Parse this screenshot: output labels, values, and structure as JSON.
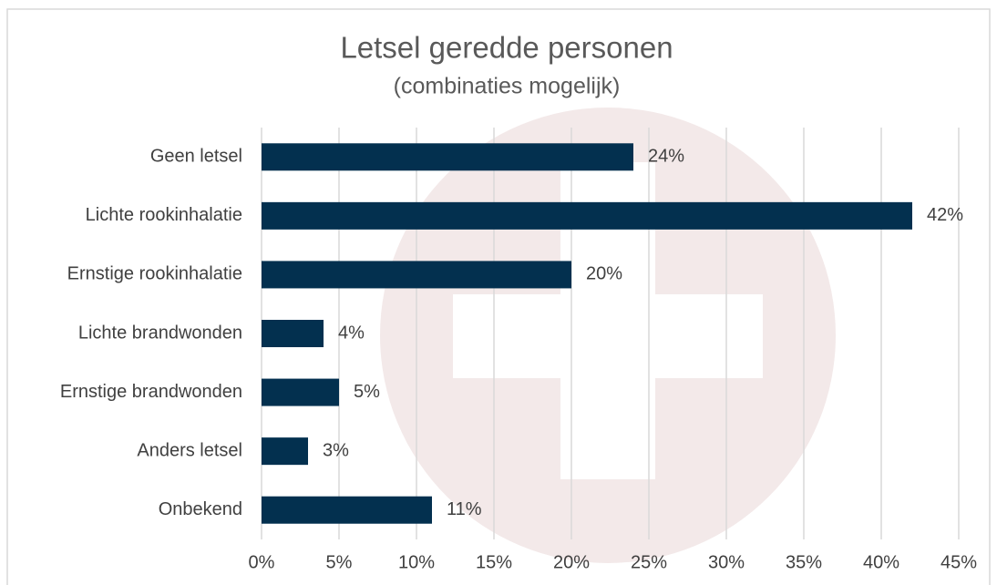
{
  "chart_data": {
    "type": "bar",
    "orientation": "horizontal",
    "title": "Letsel geredde personen",
    "subtitle": "(combinaties mogelijk)",
    "categories": [
      "Geen letsel",
      "Lichte rookinhalatie",
      "Ernstige rookinhalatie",
      "Lichte brandwonden",
      "Ernstige brandwonden",
      "Anders letsel",
      "Onbekend"
    ],
    "values": [
      24,
      42,
      20,
      4,
      5,
      3,
      11
    ],
    "value_labels": [
      "24%",
      "42%",
      "20%",
      "4%",
      "5%",
      "3%",
      "11%"
    ],
    "color": "#03304f",
    "xlim": [
      0,
      45
    ],
    "xticks": [
      {
        "value": 0,
        "label": "0%"
      },
      {
        "value": 5,
        "label": "5%"
      },
      {
        "value": 10,
        "label": "10%"
      },
      {
        "value": 15,
        "label": "15%"
      },
      {
        "value": 20,
        "label": "20%"
      },
      {
        "value": 25,
        "label": "25%"
      },
      {
        "value": 30,
        "label": "30%"
      },
      {
        "value": 35,
        "label": "35%"
      },
      {
        "value": 40,
        "label": "40%"
      },
      {
        "value": 45,
        "label": "45%"
      }
    ],
    "grid": true
  }
}
